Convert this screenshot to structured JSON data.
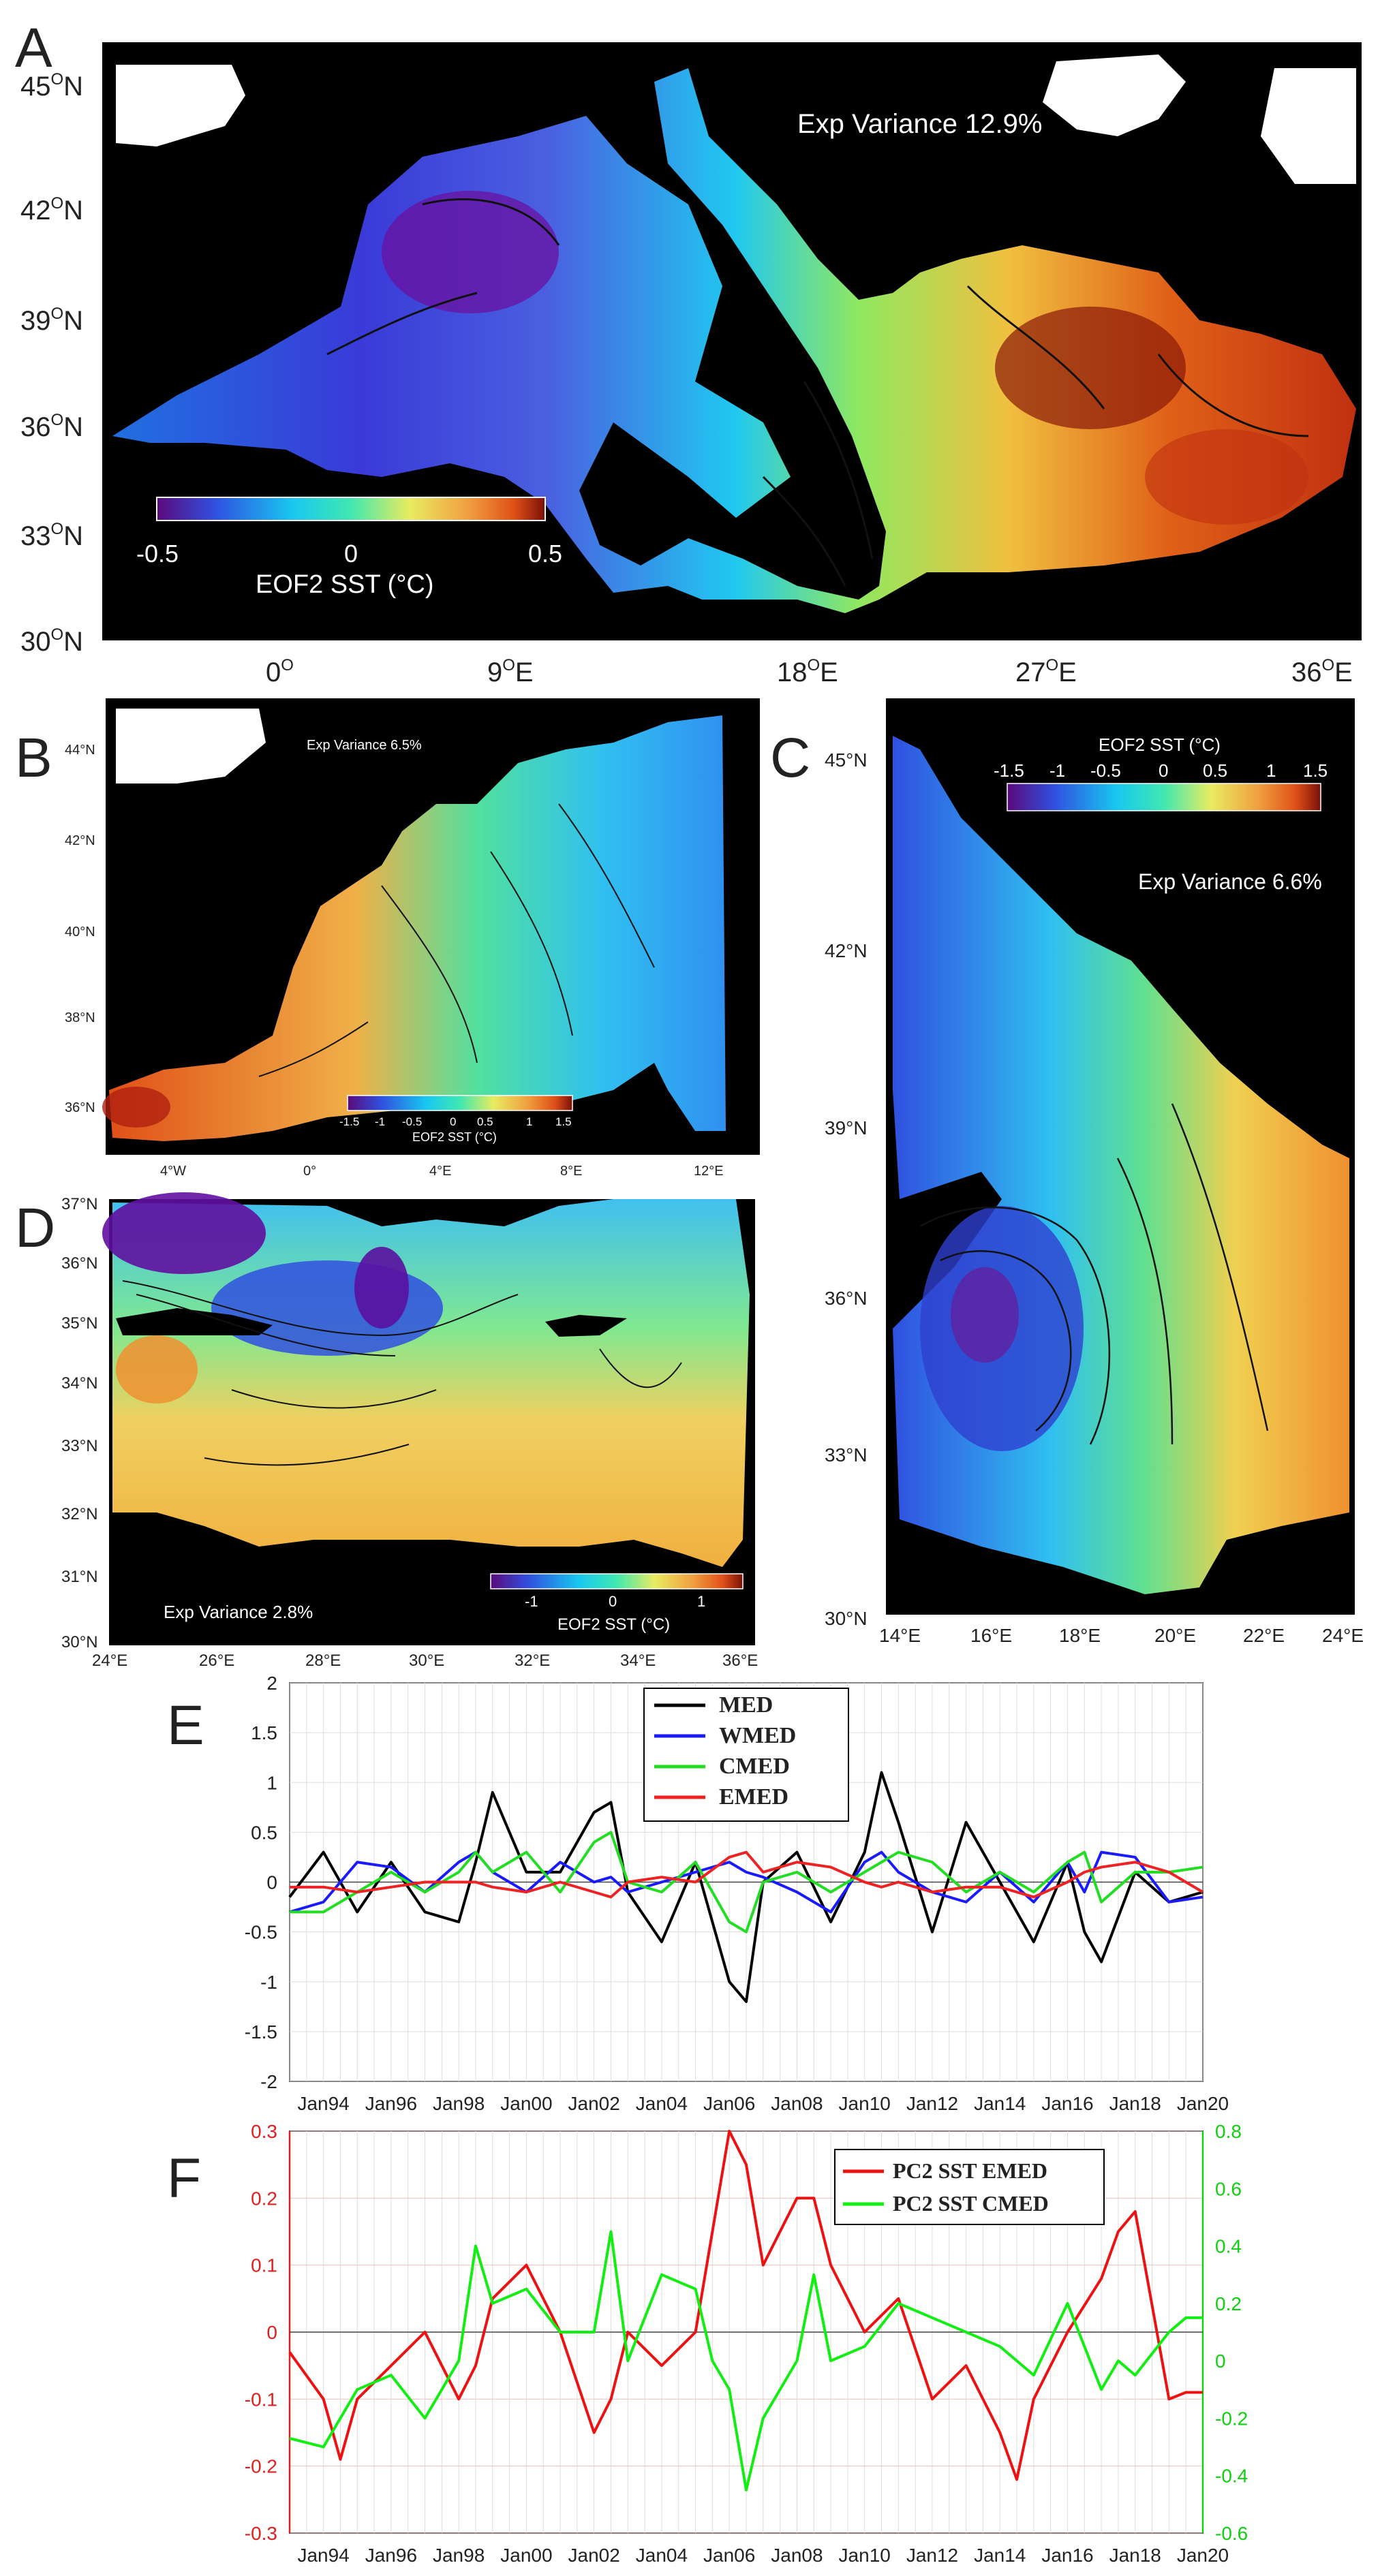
{
  "panel_letters": {
    "a": "A",
    "b": "B",
    "c": "C",
    "d": "D",
    "e": "E",
    "f": "F"
  },
  "colors": {
    "land": "#000000",
    "med": "#000000",
    "wmed": "#1a1aff",
    "cmed": "#22dd22",
    "emed": "#ee2222",
    "pc2_emed": "#ee1111",
    "pc2_cmed": "#11ee11",
    "colormap": [
      "#5a0a7a",
      "#3050e0",
      "#18c8f0",
      "#40e8b0",
      "#e8ec60",
      "#f0a040",
      "#e05018",
      "#7a1008"
    ]
  },
  "map_a": {
    "variance": "Exp Variance 12.9%",
    "colorbar_title": "EOF2 SST (°C)",
    "colorbar_ticks": [
      "-0.5",
      "0",
      "0.5"
    ],
    "lat_labels": [
      "45",
      "42",
      "39",
      "36",
      "33",
      "30"
    ],
    "lon_labels": [
      "0",
      "9",
      "18",
      "27",
      "36"
    ]
  },
  "map_b": {
    "variance": "Exp Variance 6.5%",
    "colorbar_title": "EOF2 SST (°C)",
    "colorbar_ticks": [
      "-1.5",
      "-1",
      "-0.5",
      "0",
      "0.5",
      "1",
      "1.5"
    ],
    "lat_labels": [
      "44°N",
      "42°N",
      "40°N",
      "38°N",
      "36°N"
    ],
    "lon_labels": [
      "4°W",
      "0°",
      "4°E",
      "8°E",
      "12°E"
    ]
  },
  "map_c": {
    "variance": "Exp Variance 6.6%",
    "colorbar_title": "EOF2 SST (°C)",
    "colorbar_ticks": [
      "-1.5",
      "-1",
      "-0.5",
      "0",
      "0.5",
      "1",
      "1.5"
    ],
    "lat_labels": [
      "45°N",
      "42°N",
      "39°N",
      "36°N",
      "33°N",
      "30°N"
    ],
    "lon_labels": [
      "14°E",
      "16°E",
      "18°E",
      "20°E",
      "22°E",
      "24°E"
    ]
  },
  "map_d": {
    "variance": "Exp Variance 2.8%",
    "colorbar_title": "EOF2 SST (°C)",
    "colorbar_ticks": [
      "-1",
      "0",
      "1"
    ],
    "lat_labels": [
      "37°N",
      "36°N",
      "35°N",
      "34°N",
      "33°N",
      "32°N",
      "31°N",
      "30°N"
    ],
    "lon_labels": [
      "24°E",
      "26°E",
      "28°E",
      "30°E",
      "32°E",
      "34°E",
      "36°E"
    ]
  },
  "chart_data": [
    {
      "type": "line",
      "panel": "E",
      "x_ticks": [
        "Jan94",
        "Jan96",
        "Jan98",
        "Jan00",
        "Jan02",
        "Jan04",
        "Jan06",
        "Jan08",
        "Jan10",
        "Jan12",
        "Jan14",
        "Jan16",
        "Jan18",
        "Jan20"
      ],
      "ylim": [
        -2,
        2
      ],
      "y_ticks": [
        "2",
        "1.5",
        "1",
        "0.5",
        "0",
        "-0.5",
        "-1",
        "-1.5",
        "-2"
      ],
      "legend_position": "top-center",
      "grid": true,
      "x": [
        1993.0,
        1994.0,
        1995.0,
        1996.0,
        1997.0,
        1998.0,
        1998.5,
        1999.0,
        2000.0,
        2001.0,
        2002.0,
        2002.5,
        2003.0,
        2004.0,
        2005.0,
        2006.0,
        2006.5,
        2007.0,
        2008.0,
        2009.0,
        2010.0,
        2010.5,
        2011.0,
        2012.0,
        2013.0,
        2014.0,
        2015.0,
        2016.0,
        2016.5,
        2017.0,
        2018.0,
        2019.0,
        2020.0
      ],
      "series": [
        {
          "name": "MED",
          "color_key": "med",
          "values": [
            -0.15,
            0.3,
            -0.3,
            0.2,
            -0.3,
            -0.4,
            0.2,
            0.9,
            0.1,
            0.1,
            0.7,
            0.8,
            -0.1,
            -0.6,
            0.2,
            -1.0,
            -1.2,
            0.0,
            0.3,
            -0.4,
            0.3,
            1.1,
            0.6,
            -0.5,
            0.6,
            0.0,
            -0.6,
            0.2,
            -0.5,
            -0.8,
            0.1,
            -0.2,
            -0.1
          ]
        },
        {
          "name": "WMED",
          "color_key": "wmed",
          "values": [
            -0.3,
            -0.2,
            0.2,
            0.15,
            -0.1,
            0.2,
            0.3,
            0.1,
            -0.1,
            0.2,
            0.0,
            0.05,
            -0.1,
            0.0,
            0.1,
            0.2,
            0.1,
            0.05,
            -0.1,
            -0.3,
            0.2,
            0.3,
            0.1,
            -0.1,
            -0.2,
            0.1,
            -0.2,
            0.2,
            -0.1,
            0.3,
            0.25,
            -0.2,
            -0.15
          ]
        },
        {
          "name": "CMED",
          "color_key": "cmed",
          "values": [
            -0.3,
            -0.3,
            -0.1,
            0.1,
            -0.1,
            0.1,
            0.3,
            0.1,
            0.3,
            -0.1,
            0.4,
            0.5,
            0.0,
            -0.1,
            0.2,
            -0.4,
            -0.5,
            0.0,
            0.1,
            -0.1,
            0.1,
            0.2,
            0.3,
            0.2,
            -0.1,
            0.1,
            -0.1,
            0.2,
            0.3,
            -0.2,
            0.1,
            0.1,
            0.15
          ]
        },
        {
          "name": "EMED",
          "color_key": "emed",
          "values": [
            -0.05,
            -0.05,
            -0.1,
            -0.05,
            0.0,
            0.0,
            0.0,
            -0.05,
            -0.1,
            0.0,
            -0.1,
            -0.15,
            0.0,
            0.05,
            0.0,
            0.25,
            0.3,
            0.1,
            0.2,
            0.15,
            0.0,
            -0.05,
            0.0,
            -0.1,
            -0.05,
            -0.05,
            -0.15,
            0.0,
            0.1,
            0.15,
            0.2,
            0.1,
            -0.1
          ]
        }
      ]
    },
    {
      "type": "line",
      "panel": "F",
      "x_ticks": [
        "Jan94",
        "Jan96",
        "Jan98",
        "Jan00",
        "Jan02",
        "Jan04",
        "Jan06",
        "Jan08",
        "Jan10",
        "Jan12",
        "Jan14",
        "Jan16",
        "Jan18",
        "Jan20"
      ],
      "ylim_left": [
        -0.3,
        0.3
      ],
      "y_ticks_left": [
        "0.3",
        "0.2",
        "0.1",
        "0",
        "-0.1",
        "-0.2",
        "-0.3"
      ],
      "ylim_right": [
        -0.6,
        0.8
      ],
      "y_ticks_right": [
        "0.8",
        "0.6",
        "0.4",
        "0.2",
        "0",
        "-0.2",
        "-0.4",
        "-0.6"
      ],
      "legend_position": "top-right",
      "grid": true,
      "x": [
        1993.0,
        1994.0,
        1994.5,
        1995.0,
        1996.0,
        1997.0,
        1998.0,
        1998.5,
        1999.0,
        2000.0,
        2001.0,
        2002.0,
        2002.5,
        2003.0,
        2004.0,
        2005.0,
        2005.5,
        2006.0,
        2006.5,
        2007.0,
        2008.0,
        2008.5,
        2009.0,
        2010.0,
        2011.0,
        2012.0,
        2013.0,
        2014.0,
        2014.5,
        2015.0,
        2016.0,
        2017.0,
        2017.5,
        2018.0,
        2019.0,
        2019.5,
        2020.0
      ],
      "series": [
        {
          "name": "PC2 SST EMED",
          "color_key": "pc2_emed",
          "axis": "left",
          "values": [
            -0.03,
            -0.1,
            -0.19,
            -0.1,
            -0.05,
            0.0,
            -0.1,
            -0.05,
            0.05,
            0.1,
            0.0,
            -0.15,
            -0.1,
            0.0,
            -0.05,
            0.0,
            0.15,
            0.3,
            0.25,
            0.1,
            0.2,
            0.2,
            0.1,
            0.0,
            0.05,
            -0.1,
            -0.05,
            -0.15,
            -0.22,
            -0.1,
            0.0,
            0.08,
            0.15,
            0.18,
            -0.1,
            -0.09,
            -0.09
          ]
        },
        {
          "name": "PC2 SST CMED",
          "color_key": "pc2_cmed",
          "axis": "right",
          "values": [
            -0.27,
            -0.3,
            -0.2,
            -0.1,
            -0.05,
            -0.2,
            0.0,
            0.4,
            0.2,
            0.25,
            0.1,
            0.1,
            0.45,
            0.0,
            0.3,
            0.25,
            0.0,
            -0.1,
            -0.45,
            -0.2,
            0.0,
            0.3,
            0.0,
            0.05,
            0.2,
            0.15,
            0.1,
            0.05,
            0.0,
            -0.05,
            0.2,
            -0.1,
            0.0,
            -0.05,
            0.1,
            0.15,
            0.15
          ]
        }
      ]
    }
  ]
}
